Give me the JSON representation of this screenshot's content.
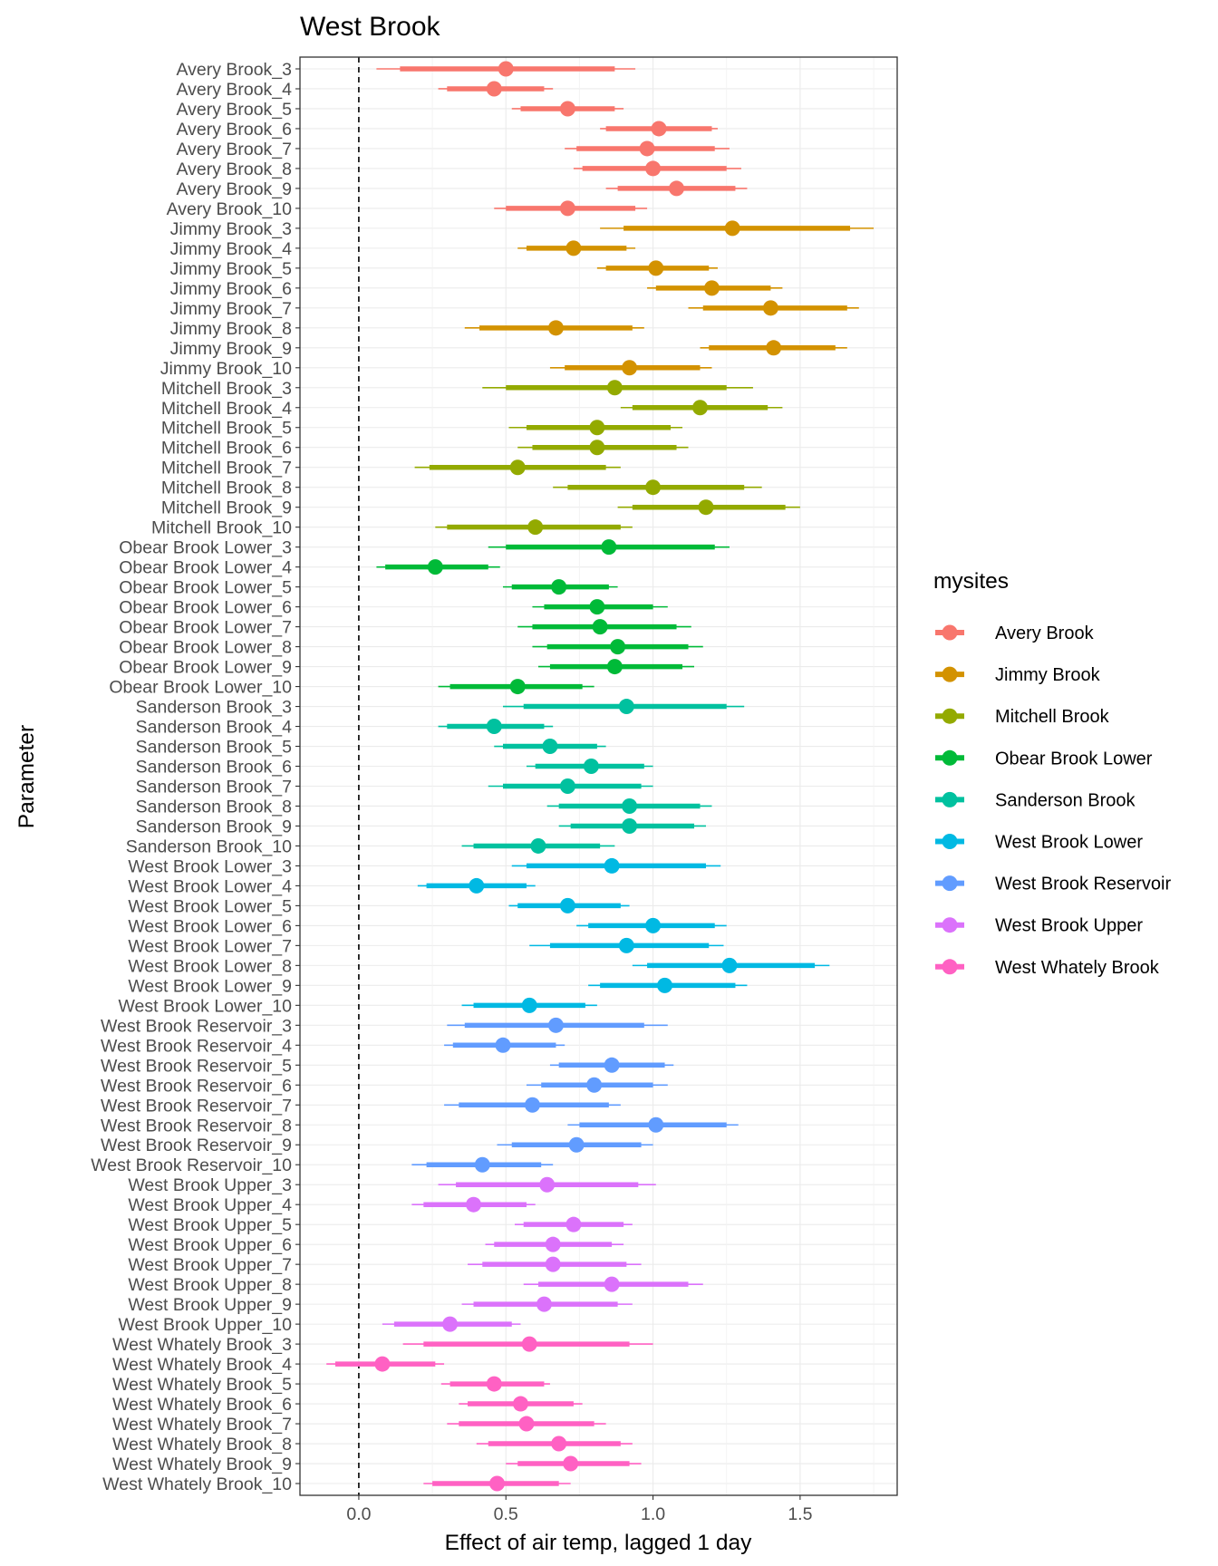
{
  "chart_data": {
    "type": "pointrange",
    "title": "West Brook",
    "xlabel": "Effect of air temp, lagged 1 day",
    "ylabel": "Parameter",
    "xlim": [
      -0.2,
      1.83
    ],
    "x_ticks": [
      0.0,
      0.5,
      1.0,
      1.5
    ],
    "x_tick_labels": [
      "0.0",
      "0.5",
      "1.0",
      "1.5"
    ],
    "reference_line": {
      "x": 0,
      "style": "dashed"
    },
    "grid": true,
    "legend": {
      "title": "mysites",
      "position": "right",
      "entries": [
        {
          "name": "Avery Brook",
          "color": "#F8766D"
        },
        {
          "name": "Jimmy Brook",
          "color": "#D39200"
        },
        {
          "name": "Mitchell Brook",
          "color": "#93AA00"
        },
        {
          "name": "Obear Brook Lower",
          "color": "#00BA38"
        },
        {
          "name": "Sanderson Brook",
          "color": "#00C19F"
        },
        {
          "name": "West Brook Lower",
          "color": "#00B9E3"
        },
        {
          "name": "West Brook Reservoir",
          "color": "#619CFF"
        },
        {
          "name": "West Brook Upper",
          "color": "#DB72FB"
        },
        {
          "name": "West Whately Brook",
          "color": "#FF61C3"
        }
      ]
    },
    "series": [
      {
        "name": "Avery Brook",
        "items": [
          {
            "label": "Avery Brook_3",
            "est": 0.5,
            "lo50": 0.14,
            "hi50": 0.87,
            "lo95": 0.06,
            "hi95": 0.94
          },
          {
            "label": "Avery Brook_4",
            "est": 0.46,
            "lo50": 0.3,
            "hi50": 0.63,
            "lo95": 0.27,
            "hi95": 0.66
          },
          {
            "label": "Avery Brook_5",
            "est": 0.71,
            "lo50": 0.55,
            "hi50": 0.87,
            "lo95": 0.52,
            "hi95": 0.9
          },
          {
            "label": "Avery Brook_6",
            "est": 1.02,
            "lo50": 0.84,
            "hi50": 1.2,
            "lo95": 0.82,
            "hi95": 1.22
          },
          {
            "label": "Avery Brook_7",
            "est": 0.98,
            "lo50": 0.74,
            "hi50": 1.21,
            "lo95": 0.7,
            "hi95": 1.26
          },
          {
            "label": "Avery Brook_8",
            "est": 1.0,
            "lo50": 0.76,
            "hi50": 1.25,
            "lo95": 0.73,
            "hi95": 1.3
          },
          {
            "label": "Avery Brook_9",
            "est": 1.08,
            "lo50": 0.88,
            "hi50": 1.28,
            "lo95": 0.84,
            "hi95": 1.32
          },
          {
            "label": "Avery Brook_10",
            "est": 0.71,
            "lo50": 0.5,
            "hi50": 0.94,
            "lo95": 0.46,
            "hi95": 0.98
          }
        ]
      },
      {
        "name": "Jimmy Brook",
        "items": [
          {
            "label": "Jimmy Brook_3",
            "est": 1.27,
            "lo50": 0.9,
            "hi50": 1.67,
            "lo95": 0.82,
            "hi95": 1.75
          },
          {
            "label": "Jimmy Brook_4",
            "est": 0.73,
            "lo50": 0.57,
            "hi50": 0.91,
            "lo95": 0.54,
            "hi95": 0.94
          },
          {
            "label": "Jimmy Brook_5",
            "est": 1.01,
            "lo50": 0.84,
            "hi50": 1.19,
            "lo95": 0.81,
            "hi95": 1.22
          },
          {
            "label": "Jimmy Brook_6",
            "est": 1.2,
            "lo50": 1.01,
            "hi50": 1.4,
            "lo95": 0.98,
            "hi95": 1.44
          },
          {
            "label": "Jimmy Brook_7",
            "est": 1.4,
            "lo50": 1.17,
            "hi50": 1.66,
            "lo95": 1.12,
            "hi95": 1.7
          },
          {
            "label": "Jimmy Brook_8",
            "est": 0.67,
            "lo50": 0.41,
            "hi50": 0.93,
            "lo95": 0.36,
            "hi95": 0.97
          },
          {
            "label": "Jimmy Brook_9",
            "est": 1.41,
            "lo50": 1.19,
            "hi50": 1.62,
            "lo95": 1.16,
            "hi95": 1.66
          },
          {
            "label": "Jimmy Brook_10",
            "est": 0.92,
            "lo50": 0.7,
            "hi50": 1.16,
            "lo95": 0.65,
            "hi95": 1.2
          }
        ]
      },
      {
        "name": "Mitchell Brook",
        "items": [
          {
            "label": "Mitchell Brook_3",
            "est": 0.87,
            "lo50": 0.5,
            "hi50": 1.25,
            "lo95": 0.42,
            "hi95": 1.34
          },
          {
            "label": "Mitchell Brook_4",
            "est": 1.16,
            "lo50": 0.93,
            "hi50": 1.39,
            "lo95": 0.89,
            "hi95": 1.44
          },
          {
            "label": "Mitchell Brook_5",
            "est": 0.81,
            "lo50": 0.57,
            "hi50": 1.06,
            "lo95": 0.51,
            "hi95": 1.1
          },
          {
            "label": "Mitchell Brook_6",
            "est": 0.81,
            "lo50": 0.59,
            "hi50": 1.08,
            "lo95": 0.54,
            "hi95": 1.12
          },
          {
            "label": "Mitchell Brook_7",
            "est": 0.54,
            "lo50": 0.24,
            "hi50": 0.84,
            "lo95": 0.19,
            "hi95": 0.89
          },
          {
            "label": "Mitchell Brook_8",
            "est": 1.0,
            "lo50": 0.71,
            "hi50": 1.31,
            "lo95": 0.66,
            "hi95": 1.37
          },
          {
            "label": "Mitchell Brook_9",
            "est": 1.18,
            "lo50": 0.93,
            "hi50": 1.45,
            "lo95": 0.88,
            "hi95": 1.5
          },
          {
            "label": "Mitchell Brook_10",
            "est": 0.6,
            "lo50": 0.3,
            "hi50": 0.89,
            "lo95": 0.26,
            "hi95": 0.93
          }
        ]
      },
      {
        "name": "Obear Brook Lower",
        "items": [
          {
            "label": "Obear Brook Lower_3",
            "est": 0.85,
            "lo50": 0.5,
            "hi50": 1.21,
            "lo95": 0.44,
            "hi95": 1.26
          },
          {
            "label": "Obear Brook Lower_4",
            "est": 0.26,
            "lo50": 0.09,
            "hi50": 0.44,
            "lo95": 0.06,
            "hi95": 0.48
          },
          {
            "label": "Obear Brook Lower_5",
            "est": 0.68,
            "lo50": 0.52,
            "hi50": 0.85,
            "lo95": 0.49,
            "hi95": 0.88
          },
          {
            "label": "Obear Brook Lower_6",
            "est": 0.81,
            "lo50": 0.63,
            "hi50": 1.0,
            "lo95": 0.59,
            "hi95": 1.05
          },
          {
            "label": "Obear Brook Lower_7",
            "est": 0.82,
            "lo50": 0.59,
            "hi50": 1.08,
            "lo95": 0.54,
            "hi95": 1.13
          },
          {
            "label": "Obear Brook Lower_8",
            "est": 0.88,
            "lo50": 0.64,
            "hi50": 1.12,
            "lo95": 0.59,
            "hi95": 1.17
          },
          {
            "label": "Obear Brook Lower_9",
            "est": 0.87,
            "lo50": 0.65,
            "hi50": 1.1,
            "lo95": 0.61,
            "hi95": 1.14
          },
          {
            "label": "Obear Brook Lower_10",
            "est": 0.54,
            "lo50": 0.31,
            "hi50": 0.76,
            "lo95": 0.27,
            "hi95": 0.8
          }
        ]
      },
      {
        "name": "Sanderson Brook",
        "items": [
          {
            "label": "Sanderson Brook_3",
            "est": 0.91,
            "lo50": 0.56,
            "hi50": 1.25,
            "lo95": 0.49,
            "hi95": 1.31
          },
          {
            "label": "Sanderson Brook_4",
            "est": 0.46,
            "lo50": 0.3,
            "hi50": 0.63,
            "lo95": 0.27,
            "hi95": 0.66
          },
          {
            "label": "Sanderson Brook_5",
            "est": 0.65,
            "lo50": 0.49,
            "hi50": 0.81,
            "lo95": 0.46,
            "hi95": 0.84
          },
          {
            "label": "Sanderson Brook_6",
            "est": 0.79,
            "lo50": 0.6,
            "hi50": 0.97,
            "lo95": 0.57,
            "hi95": 1.0
          },
          {
            "label": "Sanderson Brook_7",
            "est": 0.71,
            "lo50": 0.49,
            "hi50": 0.96,
            "lo95": 0.44,
            "hi95": 1.0
          },
          {
            "label": "Sanderson Brook_8",
            "est": 0.92,
            "lo50": 0.68,
            "hi50": 1.16,
            "lo95": 0.64,
            "hi95": 1.2
          },
          {
            "label": "Sanderson Brook_9",
            "est": 0.92,
            "lo50": 0.72,
            "hi50": 1.14,
            "lo95": 0.68,
            "hi95": 1.18
          },
          {
            "label": "Sanderson Brook_10",
            "est": 0.61,
            "lo50": 0.39,
            "hi50": 0.82,
            "lo95": 0.35,
            "hi95": 0.87
          }
        ]
      },
      {
        "name": "West Brook Lower",
        "items": [
          {
            "label": "West Brook Lower_3",
            "est": 0.86,
            "lo50": 0.57,
            "hi50": 1.18,
            "lo95": 0.52,
            "hi95": 1.23
          },
          {
            "label": "West Brook Lower_4",
            "est": 0.4,
            "lo50": 0.23,
            "hi50": 0.57,
            "lo95": 0.2,
            "hi95": 0.6
          },
          {
            "label": "West Brook Lower_5",
            "est": 0.71,
            "lo50": 0.54,
            "hi50": 0.89,
            "lo95": 0.51,
            "hi95": 0.92
          },
          {
            "label": "West Brook Lower_6",
            "est": 1.0,
            "lo50": 0.78,
            "hi50": 1.21,
            "lo95": 0.74,
            "hi95": 1.25
          },
          {
            "label": "West Brook Lower_7",
            "est": 0.91,
            "lo50": 0.65,
            "hi50": 1.19,
            "lo95": 0.58,
            "hi95": 1.24
          },
          {
            "label": "West Brook Lower_8",
            "est": 1.26,
            "lo50": 0.98,
            "hi50": 1.55,
            "lo95": 0.93,
            "hi95": 1.6
          },
          {
            "label": "West Brook Lower_9",
            "est": 1.04,
            "lo50": 0.82,
            "hi50": 1.28,
            "lo95": 0.78,
            "hi95": 1.32
          },
          {
            "label": "West Brook Lower_10",
            "est": 0.58,
            "lo50": 0.39,
            "hi50": 0.77,
            "lo95": 0.35,
            "hi95": 0.81
          }
        ]
      },
      {
        "name": "West Brook Reservoir",
        "items": [
          {
            "label": "West Brook Reservoir_3",
            "est": 0.67,
            "lo50": 0.36,
            "hi50": 0.97,
            "lo95": 0.3,
            "hi95": 1.05
          },
          {
            "label": "West Brook Reservoir_4",
            "est": 0.49,
            "lo50": 0.32,
            "hi50": 0.67,
            "lo95": 0.29,
            "hi95": 0.7
          },
          {
            "label": "West Brook Reservoir_5",
            "est": 0.86,
            "lo50": 0.68,
            "hi50": 1.04,
            "lo95": 0.65,
            "hi95": 1.07
          },
          {
            "label": "West Brook Reservoir_6",
            "est": 0.8,
            "lo50": 0.62,
            "hi50": 1.0,
            "lo95": 0.57,
            "hi95": 1.05
          },
          {
            "label": "West Brook Reservoir_7",
            "est": 0.59,
            "lo50": 0.34,
            "hi50": 0.85,
            "lo95": 0.29,
            "hi95": 0.89
          },
          {
            "label": "West Brook Reservoir_8",
            "est": 1.01,
            "lo50": 0.75,
            "hi50": 1.25,
            "lo95": 0.71,
            "hi95": 1.29
          },
          {
            "label": "West Brook Reservoir_9",
            "est": 0.74,
            "lo50": 0.52,
            "hi50": 0.96,
            "lo95": 0.47,
            "hi95": 1.0
          },
          {
            "label": "West Brook Reservoir_10",
            "est": 0.42,
            "lo50": 0.23,
            "hi50": 0.62,
            "lo95": 0.18,
            "hi95": 0.66
          }
        ]
      },
      {
        "name": "West Brook Upper",
        "items": [
          {
            "label": "West Brook Upper_3",
            "est": 0.64,
            "lo50": 0.33,
            "hi50": 0.95,
            "lo95": 0.27,
            "hi95": 1.01
          },
          {
            "label": "West Brook Upper_4",
            "est": 0.39,
            "lo50": 0.22,
            "hi50": 0.57,
            "lo95": 0.18,
            "hi95": 0.6
          },
          {
            "label": "West Brook Upper_5",
            "est": 0.73,
            "lo50": 0.56,
            "hi50": 0.9,
            "lo95": 0.53,
            "hi95": 0.93
          },
          {
            "label": "West Brook Upper_6",
            "est": 0.66,
            "lo50": 0.46,
            "hi50": 0.86,
            "lo95": 0.43,
            "hi95": 0.9
          },
          {
            "label": "West Brook Upper_7",
            "est": 0.66,
            "lo50": 0.42,
            "hi50": 0.91,
            "lo95": 0.37,
            "hi95": 0.96
          },
          {
            "label": "West Brook Upper_8",
            "est": 0.86,
            "lo50": 0.61,
            "hi50": 1.12,
            "lo95": 0.56,
            "hi95": 1.17
          },
          {
            "label": "West Brook Upper_9",
            "est": 0.63,
            "lo50": 0.39,
            "hi50": 0.88,
            "lo95": 0.35,
            "hi95": 0.93
          },
          {
            "label": "West Brook Upper_10",
            "est": 0.31,
            "lo50": 0.12,
            "hi50": 0.52,
            "lo95": 0.08,
            "hi95": 0.55
          }
        ]
      },
      {
        "name": "West Whately Brook",
        "items": [
          {
            "label": "West Whately Brook_3",
            "est": 0.58,
            "lo50": 0.22,
            "hi50": 0.92,
            "lo95": 0.15,
            "hi95": 1.0
          },
          {
            "label": "West Whately Brook_4",
            "est": 0.08,
            "lo50": -0.08,
            "hi50": 0.26,
            "lo95": -0.11,
            "hi95": 0.29
          },
          {
            "label": "West Whately Brook_5",
            "est": 0.46,
            "lo50": 0.31,
            "hi50": 0.63,
            "lo95": 0.28,
            "hi95": 0.65
          },
          {
            "label": "West Whately Brook_6",
            "est": 0.55,
            "lo50": 0.37,
            "hi50": 0.73,
            "lo95": 0.34,
            "hi95": 0.76
          },
          {
            "label": "West Whately Brook_7",
            "est": 0.57,
            "lo50": 0.34,
            "hi50": 0.8,
            "lo95": 0.3,
            "hi95": 0.84
          },
          {
            "label": "West Whately Brook_8",
            "est": 0.68,
            "lo50": 0.44,
            "hi50": 0.89,
            "lo95": 0.4,
            "hi95": 0.93
          },
          {
            "label": "West Whately Brook_9",
            "est": 0.72,
            "lo50": 0.54,
            "hi50": 0.92,
            "lo95": 0.5,
            "hi95": 0.96
          },
          {
            "label": "West Whately Brook_10",
            "est": 0.47,
            "lo50": 0.25,
            "hi50": 0.68,
            "lo95": 0.22,
            "hi95": 0.72
          }
        ]
      }
    ]
  }
}
